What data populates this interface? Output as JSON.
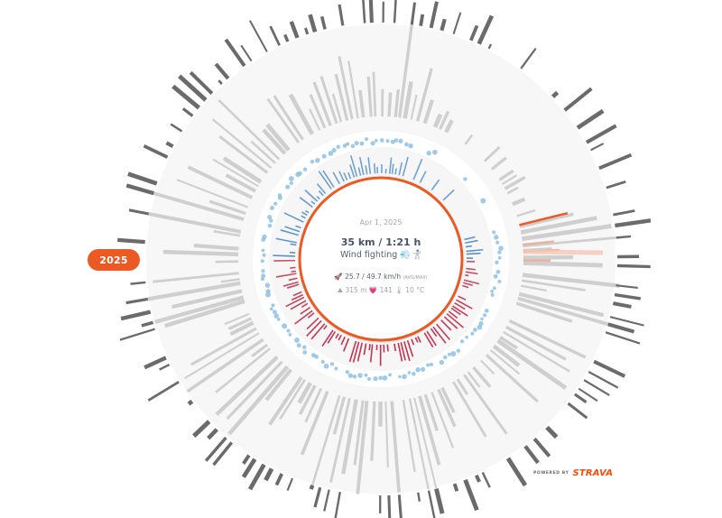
{
  "year_selector": {
    "label": "2025"
  },
  "center": {
    "date": "Apr 1, 2025",
    "distance_time": "35 km / 1:21 h",
    "activity_title": "Wind fighting",
    "activity_emojis": "💨🤺",
    "speed_icon": "🚀",
    "speed": "25.7 / 49.7 km/h",
    "speed_sub": "(AVG/MAX)",
    "elevation_icon": "⛰",
    "elevation": "315 m",
    "heart_icon": "💗",
    "heart_rate": "141",
    "temp_icon": "🌡",
    "temperature": "10 °C"
  },
  "footer": {
    "powered_by": "POWERED BY",
    "brand": "STRAVA"
  },
  "colors": {
    "accent": "#ec5a24",
    "ring_bg": "#f7f7f7",
    "outer_bar": "#6b6b6b",
    "mid_bar": "#cfcfcf",
    "dot": "#8fc1e0",
    "inner_bar_cold": "#3d7fc4",
    "inner_bar_warm": "#c4334f",
    "highlight_line": "#f6c7b5"
  },
  "chart_data": {
    "type": "radial-bar",
    "title": "Annual Strava activities 2025 (one spoke per activity, clockwise from top)",
    "center": [
      422,
      287
    ],
    "rings": {
      "core_radius": 90,
      "inner_band": [
        93,
        120
      ],
      "dot_ring_radius": 128,
      "mid_ring": [
        150,
        260
      ],
      "outer_ring": [
        262,
        300
      ]
    },
    "legend": [],
    "selected_activity": {
      "date": "Apr 1, 2025",
      "distance_km": 35,
      "duration": "1:21 h",
      "avg_speed_kmh": 25.7,
      "max_speed_kmh": 49.7,
      "elevation_m": 315,
      "heart_rate": 141,
      "temperature_c": 10
    },
    "spokes": 150,
    "seed": 7
  }
}
